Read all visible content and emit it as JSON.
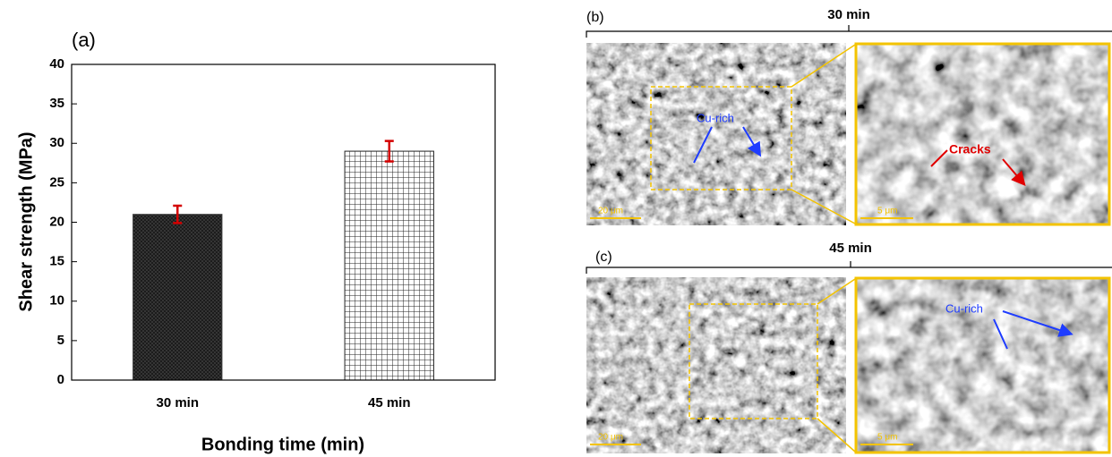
{
  "chart_data": {
    "type": "bar",
    "panel_label": "(a)",
    "x_label": "Bonding time (min)",
    "y_label": "Shear strength (MPa)",
    "categories": [
      "30 min",
      "45 min"
    ],
    "values": [
      21,
      29
    ],
    "errors": [
      1.1,
      1.3
    ],
    "colors": [
      "#3a3a3a",
      "#ffffff"
    ],
    "error_color": "#d40000",
    "ylim": [
      0,
      40
    ],
    "yticks": [
      0,
      5,
      10,
      15,
      20,
      25,
      30,
      35,
      40
    ]
  },
  "panels": [
    {
      "label": "(b)",
      "time": "30 min",
      "annotations": [
        "Cu-rich",
        "Cracks"
      ],
      "scale_bars": [
        "20 μm",
        "5 μm"
      ]
    },
    {
      "label": "(c)",
      "time": "45 min",
      "annotations": [
        "Cu-rich"
      ],
      "scale_bars": [
        "20 μm",
        "5 μm"
      ]
    }
  ]
}
